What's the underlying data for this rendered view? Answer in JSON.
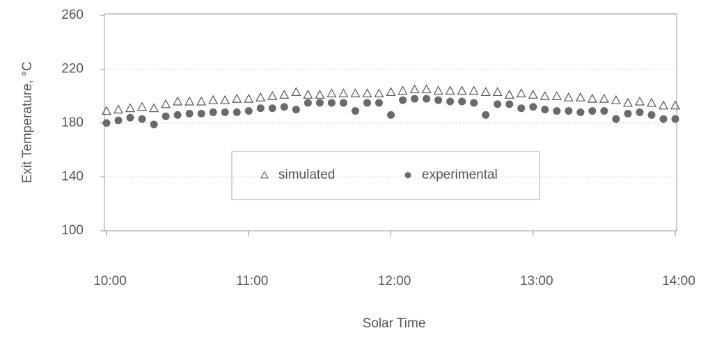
{
  "chart_data": {
    "type": "scatter",
    "x_label": "Solar Time",
    "y_label": "Exit Temperature, °C",
    "xlim": [
      0,
      240
    ],
    "ylim": [
      100,
      260
    ],
    "xticks": [
      {
        "value": 0,
        "label": "10:00"
      },
      {
        "value": 60,
        "label": "11:00"
      },
      {
        "value": 120,
        "label": "12:00"
      },
      {
        "value": 180,
        "label": "13:00"
      },
      {
        "value": 240,
        "label": "14:00"
      }
    ],
    "yticks": [
      100,
      140,
      180,
      220,
      260
    ],
    "grid": true,
    "legend": "center",
    "x": [
      0,
      5,
      10,
      15,
      20,
      25,
      30,
      35,
      40,
      45,
      50,
      55,
      60,
      65,
      70,
      75,
      80,
      85,
      90,
      95,
      100,
      105,
      110,
      115,
      120,
      125,
      130,
      135,
      140,
      145,
      150,
      155,
      160,
      165,
      170,
      175,
      180,
      185,
      190,
      195,
      200,
      205,
      210,
      215,
      220,
      225,
      230,
      235,
      240
    ],
    "series": [
      {
        "name": "simulated",
        "marker": "triangle",
        "color": "#555555",
        "values": [
          189,
          190,
          191,
          192,
          191,
          194,
          196,
          196,
          196,
          197,
          197,
          198,
          198,
          199,
          200,
          201,
          203,
          201,
          201,
          202,
          202,
          202,
          202,
          202,
          203,
          204,
          205,
          205,
          204,
          204,
          204,
          204,
          203,
          203,
          201,
          202,
          201,
          200,
          200,
          199,
          199,
          198,
          198,
          197,
          195,
          196,
          195,
          193,
          193
        ]
      },
      {
        "name": "experimental",
        "marker": "circle",
        "color": "#6a6a6a",
        "values": [
          180,
          182,
          184,
          183,
          179,
          185,
          186,
          187,
          187,
          188,
          188,
          188,
          189,
          191,
          191,
          192,
          190,
          195,
          195,
          195,
          195,
          189,
          195,
          195,
          186,
          197,
          198,
          198,
          197,
          196,
          196,
          195,
          186,
          194,
          194,
          191,
          192,
          190,
          189,
          189,
          188,
          189,
          189,
          183,
          187,
          188,
          186,
          183,
          183
        ]
      }
    ]
  }
}
